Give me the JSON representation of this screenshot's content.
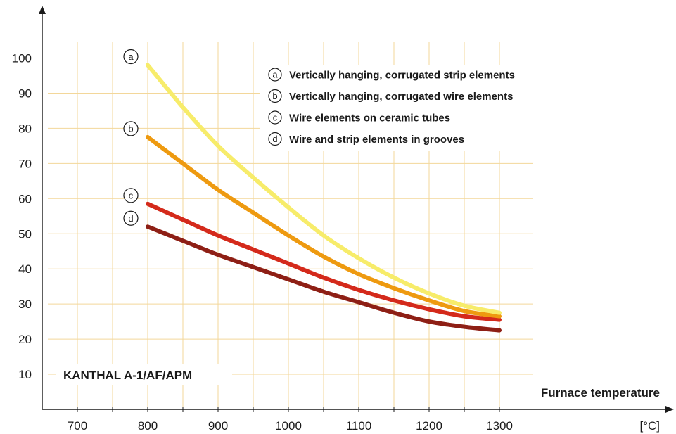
{
  "chart_data": {
    "type": "line",
    "title": "",
    "xlabel": "Furnace temperature",
    "x_unit": "[°C]",
    "ylabel": "",
    "xlim": [
      650,
      1350
    ],
    "ylim": [
      0,
      110
    ],
    "x_ticks": [
      700,
      800,
      900,
      1000,
      1100,
      1200,
      1300
    ],
    "y_ticks": [
      10,
      20,
      30,
      40,
      50,
      60,
      70,
      80,
      90,
      100
    ],
    "grid": true,
    "legend_placement": "top-right",
    "annotation": "KANTHAL A-1/AF/APM",
    "series": [
      {
        "name": "Vertically hanging, corrugated strip elements",
        "marker": "a",
        "color": "#f7ec6a",
        "x": [
          800,
          850,
          900,
          950,
          1000,
          1050,
          1100,
          1150,
          1200,
          1250,
          1300
        ],
        "y": [
          98,
          86,
          75,
          66,
          57.5,
          49.5,
          43,
          37.5,
          33,
          29.5,
          27.5
        ]
      },
      {
        "name": "Vertically hanging, corrugated wire elements",
        "marker": "b",
        "color": "#ee9a10",
        "x": [
          800,
          850,
          900,
          950,
          1000,
          1050,
          1100,
          1150,
          1200,
          1250,
          1300
        ],
        "y": [
          77.5,
          70,
          62.5,
          56,
          49.5,
          43.5,
          38.5,
          34.5,
          31,
          28,
          26.5
        ]
      },
      {
        "name": "Wire elements on ceramic tubes",
        "marker": "c",
        "color": "#d42a1b",
        "x": [
          800,
          850,
          900,
          950,
          1000,
          1050,
          1100,
          1150,
          1200,
          1250,
          1300
        ],
        "y": [
          58.5,
          54,
          49.5,
          45.5,
          41.5,
          37.5,
          34,
          31,
          28.5,
          26.5,
          25.5
        ]
      },
      {
        "name": "Wire and strip elements in grooves",
        "marker": "d",
        "color": "#8e1f15",
        "x": [
          800,
          850,
          900,
          950,
          1000,
          1050,
          1100,
          1150,
          1200,
          1250,
          1300
        ],
        "y": [
          52,
          48,
          44,
          40.5,
          37,
          33.5,
          30.5,
          27.5,
          25,
          23.5,
          22.5
        ]
      }
    ]
  }
}
